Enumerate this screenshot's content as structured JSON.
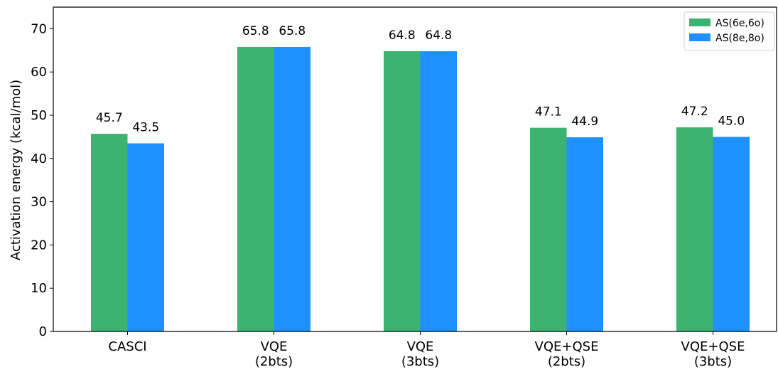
{
  "chart_data": {
    "type": "bar",
    "categories": [
      [
        "CASCI"
      ],
      [
        "VQE",
        "(2bts)"
      ],
      [
        "VQE",
        "(3bts)"
      ],
      [
        "VQE+QSE",
        "(2bts)"
      ],
      [
        "VQE+QSE",
        "(3bts)"
      ]
    ],
    "series": [
      {
        "name": "AS(6e,6o)",
        "values": [
          45.7,
          65.8,
          64.8,
          47.1,
          47.2
        ],
        "labels": [
          "45.7",
          "65.8",
          "64.8",
          "47.1",
          "47.2"
        ],
        "color": "#3cb371"
      },
      {
        "name": "AS(8e,8o)",
        "values": [
          43.5,
          65.8,
          64.8,
          44.9,
          45.0
        ],
        "labels": [
          "43.5",
          "65.8",
          "64.8",
          "44.9",
          "45.0"
        ],
        "color": "#1e90ff"
      }
    ],
    "title": "",
    "xlabel": "",
    "ylabel": "Activation energy (kcal/mol)",
    "ylim": [
      0,
      75
    ],
    "yticks": [
      0,
      10,
      20,
      30,
      40,
      50,
      60,
      70
    ],
    "grid": false,
    "legend_position": "top-right"
  }
}
